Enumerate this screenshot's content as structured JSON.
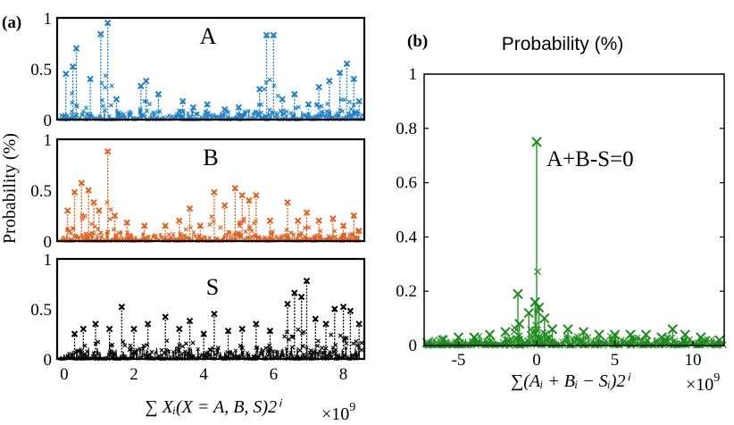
{
  "figure": {
    "panel_a_label": "(a)",
    "panel_b_label": "(b)",
    "a_ylabel": "Probability (%)",
    "a_xlabel": "∑ Xᵢ(X = A, B, S)2ⁱ",
    "a_multiplier": "×10",
    "a_multiplier_exp": "9",
    "b_title": "Probability (%)",
    "b_xlabel": "∑(Aᵢ + Bᵢ − Sᵢ)2ⁱ",
    "b_multiplier": "×10",
    "b_multiplier_exp": "9"
  },
  "chart_data": [
    {
      "type": "line",
      "title": "A",
      "color": "#1f7fc4",
      "xlim": [
        -0.2,
        8.6
      ],
      "ylim": [
        0,
        1
      ],
      "yticks": [
        "0",
        "0.5",
        "1"
      ],
      "x_tick_labels_shown": false,
      "peaks": [
        [
          0.05,
          0.45
        ],
        [
          0.25,
          0.52
        ],
        [
          0.35,
          0.7
        ],
        [
          0.75,
          0.4
        ],
        [
          1.05,
          0.84
        ],
        [
          1.25,
          0.95
        ],
        [
          1.5,
          0.2
        ],
        [
          2.2,
          0.33
        ],
        [
          2.35,
          0.38
        ],
        [
          2.7,
          0.25
        ],
        [
          3.4,
          0.18
        ],
        [
          3.7,
          0.12
        ],
        [
          4.1,
          0.15
        ],
        [
          4.6,
          0.1
        ],
        [
          5.0,
          0.12
        ],
        [
          5.6,
          0.3
        ],
        [
          5.8,
          0.83
        ],
        [
          6.0,
          0.83
        ],
        [
          6.25,
          0.2
        ],
        [
          6.6,
          0.25
        ],
        [
          7.0,
          0.15
        ],
        [
          7.3,
          0.32
        ],
        [
          7.6,
          0.38
        ],
        [
          7.9,
          0.46
        ],
        [
          8.1,
          0.55
        ],
        [
          8.3,
          0.4
        ],
        [
          8.45,
          0.18
        ]
      ]
    },
    {
      "type": "line",
      "title": "B",
      "color": "#e05e1c",
      "xlim": [
        -0.2,
        8.6
      ],
      "ylim": [
        0,
        1
      ],
      "yticks": [
        "0",
        "0.5",
        "1"
      ],
      "x_tick_labels_shown": false,
      "peaks": [
        [
          0.1,
          0.3
        ],
        [
          0.3,
          0.48
        ],
        [
          0.5,
          0.57
        ],
        [
          0.7,
          0.5
        ],
        [
          0.85,
          0.38
        ],
        [
          1.0,
          0.3
        ],
        [
          1.25,
          0.88
        ],
        [
          1.45,
          0.25
        ],
        [
          1.8,
          0.18
        ],
        [
          2.3,
          0.15
        ],
        [
          2.9,
          0.15
        ],
        [
          3.3,
          0.2
        ],
        [
          3.6,
          0.32
        ],
        [
          3.9,
          0.15
        ],
        [
          4.3,
          0.48
        ],
        [
          4.6,
          0.35
        ],
        [
          4.9,
          0.52
        ],
        [
          5.1,
          0.45
        ],
        [
          5.3,
          0.4
        ],
        [
          5.5,
          0.45
        ],
        [
          5.9,
          0.2
        ],
        [
          6.4,
          0.38
        ],
        [
          6.7,
          0.2
        ],
        [
          6.95,
          0.28
        ],
        [
          7.3,
          0.2
        ],
        [
          7.7,
          0.22
        ],
        [
          8.0,
          0.15
        ],
        [
          8.3,
          0.25
        ],
        [
          8.45,
          0.1
        ]
      ]
    },
    {
      "type": "line",
      "title": "S",
      "color": "#000000",
      "xlim": [
        -0.2,
        8.6
      ],
      "ylim": [
        0,
        1
      ],
      "yticks": [
        "0",
        "0.5",
        "1"
      ],
      "xticks": [
        0,
        2,
        4,
        6,
        8
      ],
      "xtick_labels": [
        "0",
        "2",
        "4",
        "6",
        "8"
      ],
      "peaks": [
        [
          0.3,
          0.25
        ],
        [
          0.55,
          0.3
        ],
        [
          0.9,
          0.35
        ],
        [
          1.3,
          0.3
        ],
        [
          1.65,
          0.52
        ],
        [
          2.0,
          0.3
        ],
        [
          2.4,
          0.35
        ],
        [
          2.9,
          0.42
        ],
        [
          3.3,
          0.3
        ],
        [
          3.6,
          0.38
        ],
        [
          4.0,
          0.25
        ],
        [
          4.3,
          0.45
        ],
        [
          4.7,
          0.28
        ],
        [
          5.1,
          0.3
        ],
        [
          5.5,
          0.35
        ],
        [
          5.9,
          0.28
        ],
        [
          6.4,
          0.55
        ],
        [
          6.6,
          0.66
        ],
        [
          6.8,
          0.62
        ],
        [
          6.95,
          0.78
        ],
        [
          7.2,
          0.4
        ],
        [
          7.5,
          0.35
        ],
        [
          7.75,
          0.5
        ],
        [
          8.0,
          0.52
        ],
        [
          8.2,
          0.48
        ],
        [
          8.45,
          0.35
        ]
      ]
    },
    {
      "type": "line",
      "title": "",
      "color": "#1e8a1e",
      "xlim": [
        -7.2,
        12
      ],
      "ylim": [
        0,
        1
      ],
      "xticks": [
        -5,
        0,
        5,
        10
      ],
      "xtick_labels": [
        "-5",
        "0",
        "5",
        "10"
      ],
      "yticks": [
        0,
        0.2,
        0.4,
        0.6,
        0.8,
        1
      ],
      "ytick_labels": [
        "0",
        "0.2",
        "0.4",
        "0.6",
        "0.8",
        "1"
      ],
      "annotation": "A+B-S=0",
      "peaks": [
        [
          -7.0,
          0.01
        ],
        [
          -6.0,
          0.02
        ],
        [
          -5.0,
          0.03
        ],
        [
          -4.0,
          0.03
        ],
        [
          -3.0,
          0.04
        ],
        [
          -2.0,
          0.05
        ],
        [
          -1.2,
          0.19
        ],
        [
          -1.1,
          0.08
        ],
        [
          -0.5,
          0.12
        ],
        [
          -0.1,
          0.16
        ],
        [
          0.0,
          0.75
        ],
        [
          0.15,
          0.14
        ],
        [
          0.5,
          0.1
        ],
        [
          1.0,
          0.06
        ],
        [
          2.0,
          0.06
        ],
        [
          3.0,
          0.05
        ],
        [
          4.0,
          0.04
        ],
        [
          5.0,
          0.04
        ],
        [
          6.0,
          0.04
        ],
        [
          7.0,
          0.04
        ],
        [
          8.0,
          0.03
        ],
        [
          8.7,
          0.06
        ],
        [
          9.5,
          0.04
        ],
        [
          10.5,
          0.03
        ],
        [
          11.7,
          0.02
        ]
      ]
    }
  ]
}
